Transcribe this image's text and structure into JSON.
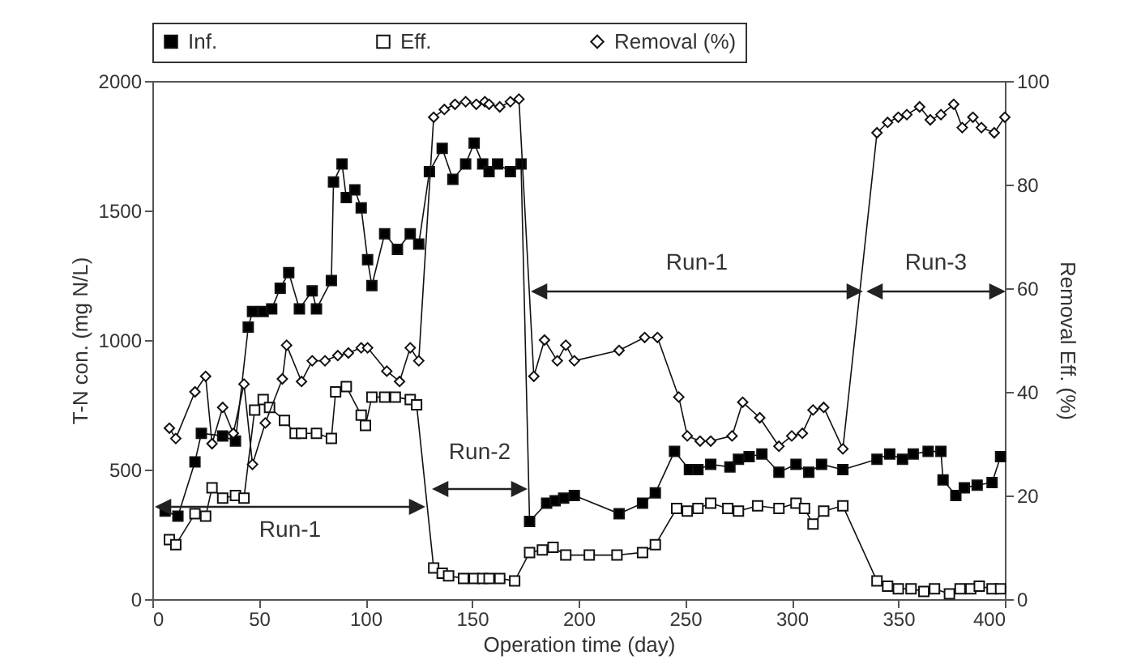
{
  "chart_data": {
    "type": "line",
    "xlabel": "Operation time (day)",
    "ylabel": "T-N con. (mg N/L)",
    "y2label": "Removal Eff. (%)",
    "xlim": [
      0,
      400
    ],
    "xticks": [
      0,
      50,
      100,
      150,
      200,
      250,
      300,
      350,
      400
    ],
    "ylim": [
      0,
      2000
    ],
    "yticks": [
      0,
      500,
      1000,
      1500,
      2000
    ],
    "y2lim": [
      0,
      100
    ],
    "y2ticks": [
      0,
      20,
      40,
      60,
      80,
      100
    ],
    "grid": false,
    "legend": "top",
    "line_style": "solid",
    "series": [
      {
        "name": "Inf.",
        "color": "#000000",
        "marker": "square",
        "x": [
          6,
          12,
          20,
          23,
          33,
          39,
          45,
          47,
          52,
          56,
          60,
          64,
          69,
          75,
          77,
          84,
          85,
          89,
          91,
          95,
          98,
          101,
          103,
          109,
          115,
          121,
          125,
          130,
          136,
          141,
          147,
          151,
          155,
          158,
          162,
          168,
          173,
          177,
          185,
          189,
          193,
          198,
          219,
          230,
          236,
          245,
          252,
          256,
          262,
          271,
          275,
          280,
          286,
          294,
          302,
          308,
          314,
          324,
          340,
          346,
          352,
          357,
          364,
          370,
          371,
          377,
          381,
          387,
          394,
          398
        ],
        "values": [
          340,
          320,
          530,
          640,
          630,
          610,
          1050,
          1110,
          1110,
          1120,
          1200,
          1260,
          1120,
          1190,
          1120,
          1230,
          1610,
          1680,
          1550,
          1580,
          1510,
          1310,
          1210,
          1410,
          1350,
          1410,
          1370,
          1650,
          1740,
          1620,
          1680,
          1760,
          1680,
          1650,
          1680,
          1650,
          1680,
          300,
          370,
          380,
          390,
          400,
          330,
          370,
          410,
          570,
          500,
          500,
          520,
          510,
          540,
          550,
          560,
          490,
          520,
          490,
          520,
          500,
          540,
          560,
          540,
          560,
          570,
          570,
          460,
          400,
          430,
          440,
          450,
          550
        ]
      },
      {
        "name": "Eff.",
        "color": "#ffffff",
        "marker": "square",
        "x": [
          8,
          11,
          20,
          25,
          28,
          33,
          39,
          43,
          48,
          52,
          55,
          62,
          67,
          70,
          77,
          84,
          86,
          91,
          98,
          100,
          103,
          109,
          114,
          121,
          124,
          132,
          136,
          139,
          146,
          151,
          155,
          158,
          163,
          170,
          177,
          183,
          188,
          194,
          205,
          218,
          230,
          236,
          246,
          251,
          256,
          262,
          270,
          275,
          284,
          294,
          302,
          306,
          310,
          315,
          324,
          340,
          345,
          350,
          356,
          362,
          367,
          374,
          379,
          384,
          388,
          394,
          398
        ],
        "values": [
          230,
          210,
          330,
          320,
          430,
          390,
          400,
          390,
          730,
          770,
          740,
          690,
          640,
          640,
          640,
          620,
          800,
          820,
          710,
          670,
          780,
          780,
          780,
          770,
          750,
          120,
          100,
          90,
          80,
          80,
          80,
          80,
          80,
          70,
          180,
          190,
          200,
          170,
          170,
          170,
          180,
          210,
          350,
          340,
          350,
          370,
          350,
          340,
          360,
          350,
          370,
          350,
          290,
          340,
          360,
          70,
          50,
          40,
          40,
          30,
          40,
          20,
          40,
          40,
          50,
          40,
          40
        ]
      },
      {
        "name": "Removal (%)",
        "color": "#ffffff",
        "marker": "diamond",
        "axis": "y2",
        "x": [
          8,
          11,
          20,
          25,
          28,
          33,
          38,
          43,
          47,
          53,
          61,
          63,
          70,
          75,
          81,
          87,
          92,
          98,
          101,
          110,
          116,
          121,
          125,
          132,
          137,
          142,
          147,
          152,
          156,
          158,
          163,
          168,
          172,
          179,
          184,
          190,
          194,
          198,
          219,
          231,
          237,
          247,
          251,
          257,
          262,
          272,
          277,
          285,
          294,
          300,
          305,
          310,
          315,
          324,
          340,
          345,
          350,
          354,
          360,
          365,
          370,
          376,
          380,
          385,
          389,
          395,
          400
        ],
        "values": [
          33,
          31,
          40,
          43,
          30,
          37,
          32,
          41.5,
          26,
          34,
          42.5,
          49,
          42,
          46,
          46,
          47,
          47.5,
          48.5,
          48.5,
          44,
          42,
          48.5,
          46,
          93,
          94.5,
          95.5,
          96,
          95.5,
          96,
          95.5,
          95,
          96,
          96.5,
          43,
          50,
          46,
          49,
          46,
          48,
          50.5,
          50.5,
          39,
          31.5,
          30.5,
          30.5,
          31.5,
          38,
          35,
          29.5,
          31.5,
          32,
          36.5,
          37,
          29,
          90,
          92,
          93,
          93.5,
          95,
          92.5,
          93.5,
          95.5,
          91,
          93,
          91,
          90,
          93
        ]
      }
    ],
    "annotations": [
      "Run-1",
      "Run-2",
      "Run-1",
      "Run-3"
    ]
  }
}
